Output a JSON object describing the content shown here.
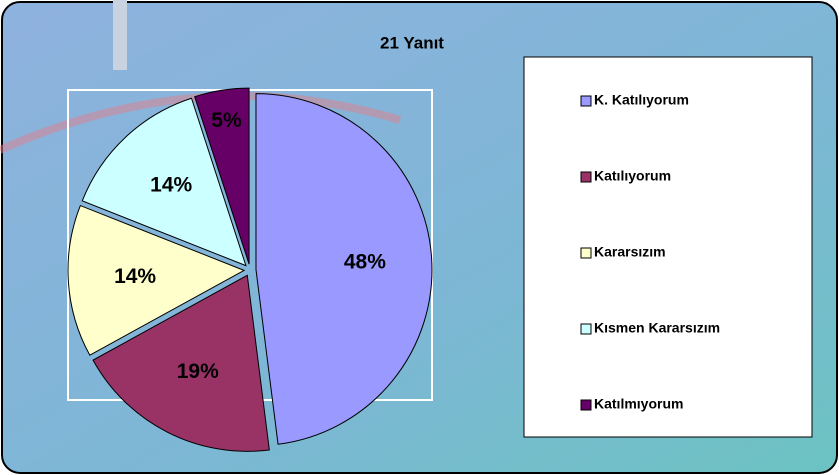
{
  "chart_data": {
    "type": "pie",
    "title": "21 Yanıt",
    "categories": [
      "K. Katılıyorum",
      "Katılıyorum",
      "Kararsızım",
      "Kısmen Kararsızım",
      "Katılmıyorum"
    ],
    "values": [
      48,
      19,
      14,
      14,
      5
    ],
    "value_labels": [
      "48%",
      "19%",
      "14%",
      "14%",
      "5%"
    ],
    "colors": [
      "#9999ff",
      "#993366",
      "#ffffcc",
      "#ccffff",
      "#660066"
    ],
    "legend": "right"
  }
}
